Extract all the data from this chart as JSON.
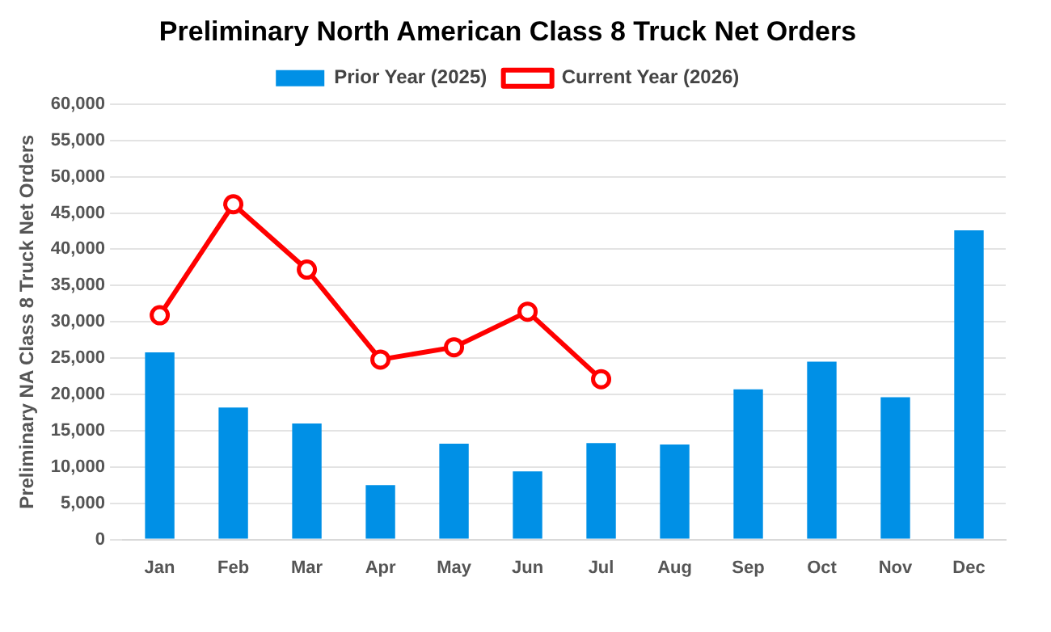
{
  "chart_data": {
    "type": "bar",
    "title": "Preliminary North American Class 8 Truck Net Orders",
    "ylabel": "Preliminary NA Class 8 Truck Net Orders",
    "categories": [
      "Jan",
      "Feb",
      "Mar",
      "Apr",
      "May",
      "Jun",
      "Jul",
      "Aug",
      "Sep",
      "Oct",
      "Nov",
      "Dec"
    ],
    "series": [
      {
        "name": "Prior Year (2025)",
        "color": "#0090e6",
        "values": [
          25800,
          18200,
          16000,
          7500,
          13200,
          9400,
          13300,
          13100,
          20700,
          24500,
          19600,
          42600
        ]
      },
      {
        "name": "Current Year (2026)",
        "type": "line",
        "color": "#ff0000",
        "marker": "circle",
        "values": [
          30900,
          46200,
          37200,
          24800,
          26500,
          31400,
          22100,
          null,
          null,
          null,
          null,
          null
        ]
      }
    ],
    "ylim": [
      0,
      60000
    ],
    "yticks": [
      0,
      {
        "value": 5000,
        "label": "5,000"
      },
      {
        "value": 10000,
        "label": "10,000"
      },
      {
        "value": 15000,
        "label": "15,000"
      },
      {
        "value": 20000,
        "label": "20,000"
      },
      {
        "value": 25000,
        "label": "25,000"
      },
      {
        "value": 30000,
        "label": "30,000"
      },
      {
        "value": 35000,
        "label": "35,000"
      },
      {
        "value": 40000,
        "label": "40,000"
      },
      {
        "value": 45000,
        "label": "45,000"
      },
      {
        "value": 50000,
        "label": "50,000"
      },
      {
        "value": 55000,
        "label": "55,000"
      },
      {
        "value": 60000,
        "label": "60,000"
      }
    ],
    "grid": "y",
    "legend": "top"
  }
}
